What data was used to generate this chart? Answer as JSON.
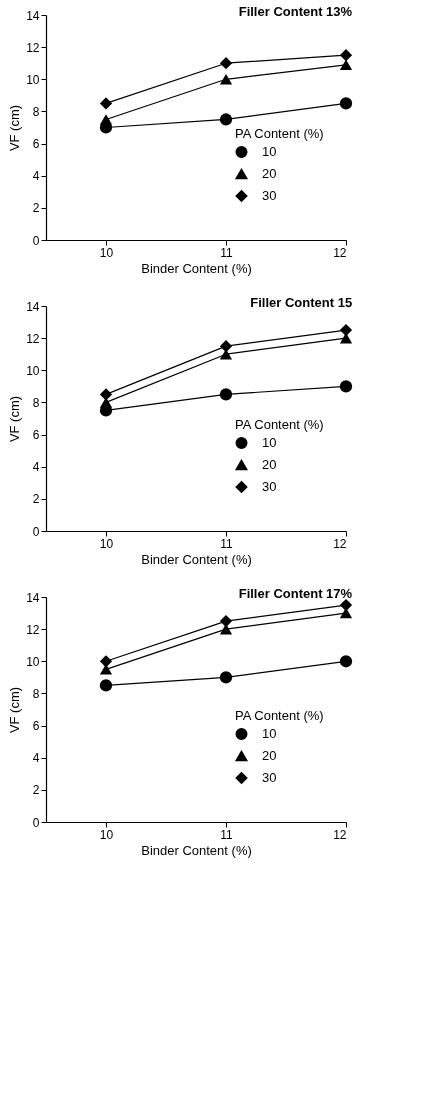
{
  "chart_data": [
    {
      "type": "line",
      "title": "Filler Content 13%",
      "xlabel": "Binder Content (%)",
      "ylabel": "VF (cm)",
      "legend_title": "PA Content (%)",
      "legend": "right",
      "x": [
        10,
        11,
        12
      ],
      "xlim": [
        9.5,
        12
      ],
      "xticks": [
        10,
        11,
        12
      ],
      "ylim": [
        0,
        14
      ],
      "yticks": [
        0,
        2,
        4,
        6,
        8,
        10,
        12,
        14
      ],
      "grid": false,
      "line_style": "solid",
      "series": [
        {
          "name": "10",
          "color": "#000000",
          "marker": "circle",
          "values": [
            7,
            7.5,
            8.5
          ]
        },
        {
          "name": "20",
          "color": "#000000",
          "marker": "triangle",
          "values": [
            7.5,
            10,
            10.9
          ]
        },
        {
          "name": "30",
          "color": "#000000",
          "marker": "diamond",
          "values": [
            8.5,
            11,
            11.5
          ]
        }
      ]
    },
    {
      "type": "line",
      "title": "Filler Content 15",
      "xlabel": "Binder Content (%)",
      "ylabel": "VF (cm)",
      "legend_title": "PA Content (%)",
      "legend": "right",
      "x": [
        10,
        11,
        12
      ],
      "xlim": [
        9.5,
        12
      ],
      "xticks": [
        10,
        11,
        12
      ],
      "ylim": [
        0,
        14
      ],
      "yticks": [
        0,
        2,
        4,
        6,
        8,
        10,
        12,
        14
      ],
      "grid": false,
      "line_style": "solid",
      "series": [
        {
          "name": "10",
          "color": "#000000",
          "marker": "circle",
          "values": [
            7.5,
            8.5,
            9
          ]
        },
        {
          "name": "20",
          "color": "#000000",
          "marker": "triangle",
          "values": [
            8,
            11,
            12
          ]
        },
        {
          "name": "30",
          "color": "#000000",
          "marker": "diamond",
          "values": [
            8.5,
            11.5,
            12.5
          ]
        }
      ]
    },
    {
      "type": "line",
      "title": "Filler Content 17%",
      "xlabel": "Binder Content (%)",
      "ylabel": "VF (cm)",
      "legend_title": "PA Content (%)",
      "legend": "right",
      "x": [
        10,
        11,
        12
      ],
      "xlim": [
        9.5,
        12
      ],
      "xticks": [
        10,
        11,
        12
      ],
      "ylim": [
        0,
        14
      ],
      "yticks": [
        0,
        2,
        4,
        6,
        8,
        10,
        12,
        14
      ],
      "grid": false,
      "line_style": "solid",
      "series": [
        {
          "name": "10",
          "color": "#000000",
          "marker": "circle",
          "values": [
            8.5,
            9,
            10
          ]
        },
        {
          "name": "20",
          "color": "#000000",
          "marker": "triangle",
          "values": [
            9.5,
            12,
            13
          ]
        },
        {
          "name": "30",
          "color": "#000000",
          "marker": "diamond",
          "values": [
            10,
            12.5,
            13.5
          ]
        }
      ]
    }
  ]
}
